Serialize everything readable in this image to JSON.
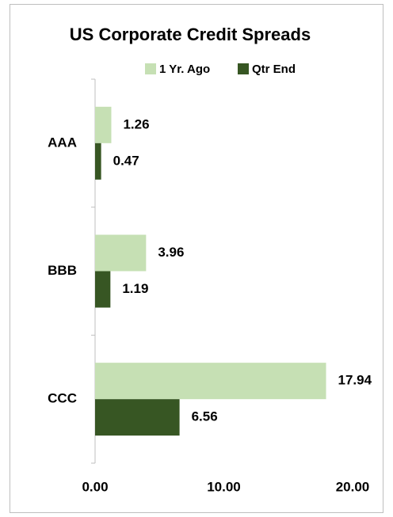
{
  "chart_data": {
    "type": "bar",
    "orientation": "horizontal",
    "title": "US Corporate Credit Spreads",
    "categories": [
      "AAA",
      "BBB",
      "CCC"
    ],
    "series": [
      {
        "name": "1 Yr. Ago",
        "color": "#c6e0b4",
        "values": [
          1.26,
          3.96,
          17.94
        ]
      },
      {
        "name": "Qtr End",
        "color": "#375623",
        "values": [
          0.47,
          1.19,
          6.56
        ]
      }
    ],
    "xlim": [
      0,
      20
    ],
    "xticks": [
      {
        "value": 0,
        "label": "0.00"
      },
      {
        "value": 10,
        "label": "10.00"
      },
      {
        "value": 20,
        "label": "20.00"
      }
    ],
    "legend": "top"
  }
}
